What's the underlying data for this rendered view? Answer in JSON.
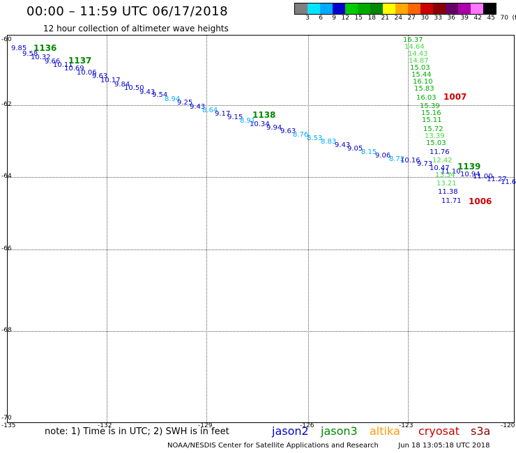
{
  "header": {
    "title": "00:00 – 11:59 UTC 06/17/2018",
    "subtitle": "12 hour collection of altimeter wave heights"
  },
  "legend": {
    "colors": [
      "#7f7f7f",
      "#00e5ff",
      "#00aaff",
      "#0000cc",
      "#00cc00",
      "#00aa00",
      "#008800",
      "#ffff00",
      "#ffaa00",
      "#ff6600",
      "#cc0000",
      "#880000",
      "#660066",
      "#aa00aa",
      "#ff77ff",
      "#000000"
    ],
    "labels": [
      "3",
      "6",
      "9",
      "12",
      "15",
      "18",
      "21",
      "24",
      "27",
      "30",
      "33",
      "36",
      "39",
      "42",
      "45",
      "70",
      "(ft)"
    ]
  },
  "axes": {
    "y_labels": [
      "-60",
      "-62",
      "-64",
      "-66",
      "-68",
      "-70"
    ],
    "x_labels": [
      "-135",
      "-132",
      "-129",
      "-126",
      "-123",
      "-120"
    ]
  },
  "observations": [
    {
      "t": "9.85",
      "c": "#0000cc"
    },
    {
      "t": "9.58",
      "c": "#0000cc"
    },
    {
      "t": "10.32",
      "c": "#0000cc"
    },
    {
      "t": "9.66",
      "c": "#0000cc"
    },
    {
      "t": "10.11",
      "c": "#0000cc"
    },
    {
      "t": "10.69",
      "c": "#0000cc"
    },
    {
      "t": "10.06",
      "c": "#0000cc"
    },
    {
      "t": "9.63",
      "c": "#0000cc"
    },
    {
      "t": "10.17",
      "c": "#0000cc"
    },
    {
      "t": "9.84",
      "c": "#0000cc"
    },
    {
      "t": "10.50",
      "c": "#0000cc"
    },
    {
      "t": "9.43",
      "c": "#0000cc"
    },
    {
      "t": "9.54",
      "c": "#0000cc"
    },
    {
      "t": "8.94",
      "c": "#00aaff"
    },
    {
      "t": "9.25",
      "c": "#0000cc"
    },
    {
      "t": "9.43",
      "c": "#0000cc"
    },
    {
      "t": "8.64",
      "c": "#00aaff"
    },
    {
      "t": "9.17",
      "c": "#0000cc"
    },
    {
      "t": "9.15",
      "c": "#0000cc"
    },
    {
      "t": "8.91",
      "c": "#00aaff"
    },
    {
      "t": "10.34",
      "c": "#0000cc"
    },
    {
      "t": "9.94",
      "c": "#0000cc"
    },
    {
      "t": "9.63",
      "c": "#0000cc"
    },
    {
      "t": "8.76",
      "c": "#00aaff"
    },
    {
      "t": "8.53",
      "c": "#00aaff"
    },
    {
      "t": "8.83",
      "c": "#00aaff"
    },
    {
      "t": "9.43",
      "c": "#0000cc"
    },
    {
      "t": "9.05",
      "c": "#0000cc"
    },
    {
      "t": "8.15",
      "c": "#00aaff"
    },
    {
      "t": "9.06",
      "c": "#0000cc"
    },
    {
      "t": "8.72",
      "c": "#00aaff"
    },
    {
      "t": "10.16",
      "c": "#0000cc"
    },
    {
      "t": "9.73",
      "c": "#0000cc"
    },
    {
      "t": "10.47",
      "c": "#0000cc"
    },
    {
      "t": "11.10",
      "c": "#0000cc"
    },
    {
      "t": "10.94",
      "c": "#0000cc"
    },
    {
      "t": "11.00",
      "c": "#0000cc"
    },
    {
      "t": "11.27",
      "c": "#0000cc"
    },
    {
      "t": "11.6",
      "c": "#0000cc"
    },
    {
      "t": "16.37",
      "c": "#00aa00"
    },
    {
      "t": "14.64",
      "c": "#44dd44"
    },
    {
      "t": "14.43",
      "c": "#44dd44"
    },
    {
      "t": "14.87",
      "c": "#44dd44"
    },
    {
      "t": "15.03",
      "c": "#00aa00"
    },
    {
      "t": "15.44",
      "c": "#00aa00"
    },
    {
      "t": "16.10",
      "c": "#00aa00"
    },
    {
      "t": "15.83",
      "c": "#00aa00"
    },
    {
      "t": "16.03",
      "c": "#00aa00"
    },
    {
      "t": "15.39",
      "c": "#00aa00"
    },
    {
      "t": "15.16",
      "c": "#00aa00"
    },
    {
      "t": "15.11",
      "c": "#00aa00"
    },
    {
      "t": "15.72",
      "c": "#00aa00"
    },
    {
      "t": "13.39",
      "c": "#44dd44"
    },
    {
      "t": "15.03",
      "c": "#00aa00"
    },
    {
      "t": "11.76",
      "c": "#0000cc"
    },
    {
      "t": "12.42",
      "c": "#44dd44"
    },
    {
      "t": "13.34",
      "c": "#44dd44"
    },
    {
      "t": "13.21",
      "c": "#44dd44"
    },
    {
      "t": "11.38",
      "c": "#0000cc"
    },
    {
      "t": "11.71",
      "c": "#0000cc"
    }
  ],
  "passes": [
    {
      "t": "1136",
      "c": "#008800"
    },
    {
      "t": "1137",
      "c": "#008800"
    },
    {
      "t": "1138",
      "c": "#008800"
    },
    {
      "t": "1139",
      "c": "#008800"
    },
    {
      "t": "1007",
      "c": "#cc0000"
    },
    {
      "t": "1006",
      "c": "#cc0000"
    }
  ],
  "footer": {
    "note": "note: 1) Time is in UTC; 2) SWH is in feet",
    "satellites": [
      {
        "name": "jason2",
        "color": "#0000cc"
      },
      {
        "name": "jason3",
        "color": "#008800"
      },
      {
        "name": "altika",
        "color": "#ff9900"
      },
      {
        "name": "cryosat",
        "color": "#cc0000"
      },
      {
        "name": "s3a",
        "color": "#880000"
      }
    ],
    "credit": "NOAA/NESDIS Center for Satellite Applications and Research",
    "timestamp": "Jun 18 13:05:18 UTC 2018"
  }
}
